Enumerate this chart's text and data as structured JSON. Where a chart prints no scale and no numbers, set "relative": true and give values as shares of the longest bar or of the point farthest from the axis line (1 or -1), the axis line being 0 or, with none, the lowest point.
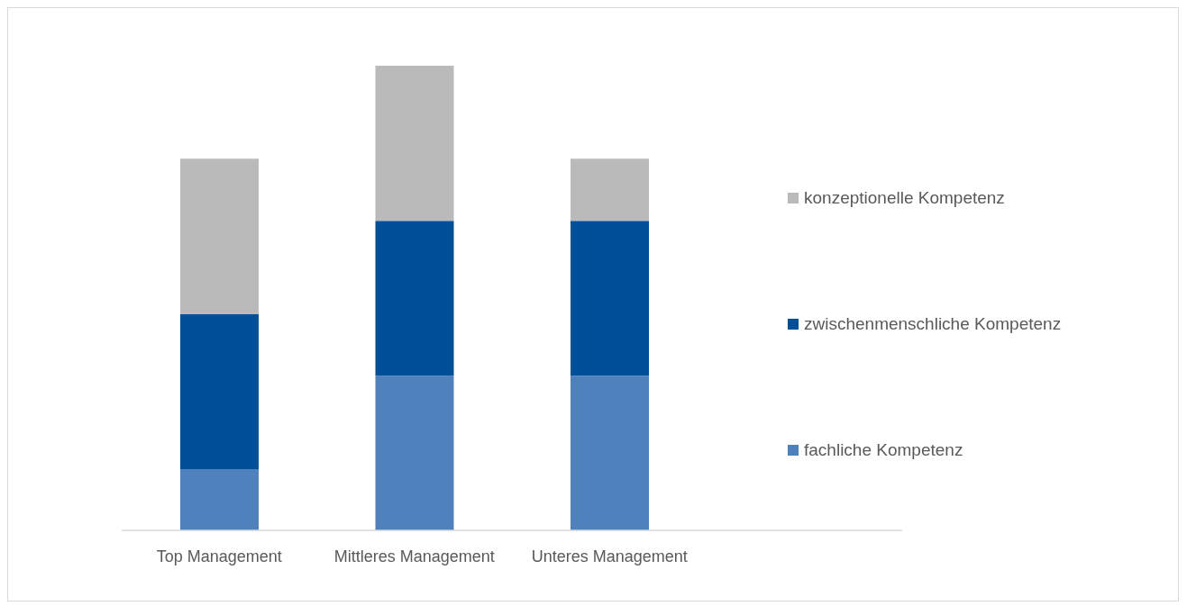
{
  "chart_data": {
    "type": "bar",
    "stacked": true,
    "relative": true,
    "legend": "right",
    "categories": [
      "Top Management",
      "Mittleres Management",
      "Unteres Management",
      null
    ],
    "series": [
      {
        "name": "fachliche Kompetenz",
        "color": "#4f81bd",
        "values": [
          0.132,
          0.333,
          0.333,
          null
        ]
      },
      {
        "name": "zwischenmenschliche Kompetenz",
        "color": "#004f98",
        "values": [
          0.333,
          0.333,
          0.333,
          null
        ]
      },
      {
        "name": "konzeptionelle Kompetenz",
        "color": "#bababa",
        "values": [
          0.335,
          0.334,
          0.134,
          null
        ]
      }
    ]
  }
}
